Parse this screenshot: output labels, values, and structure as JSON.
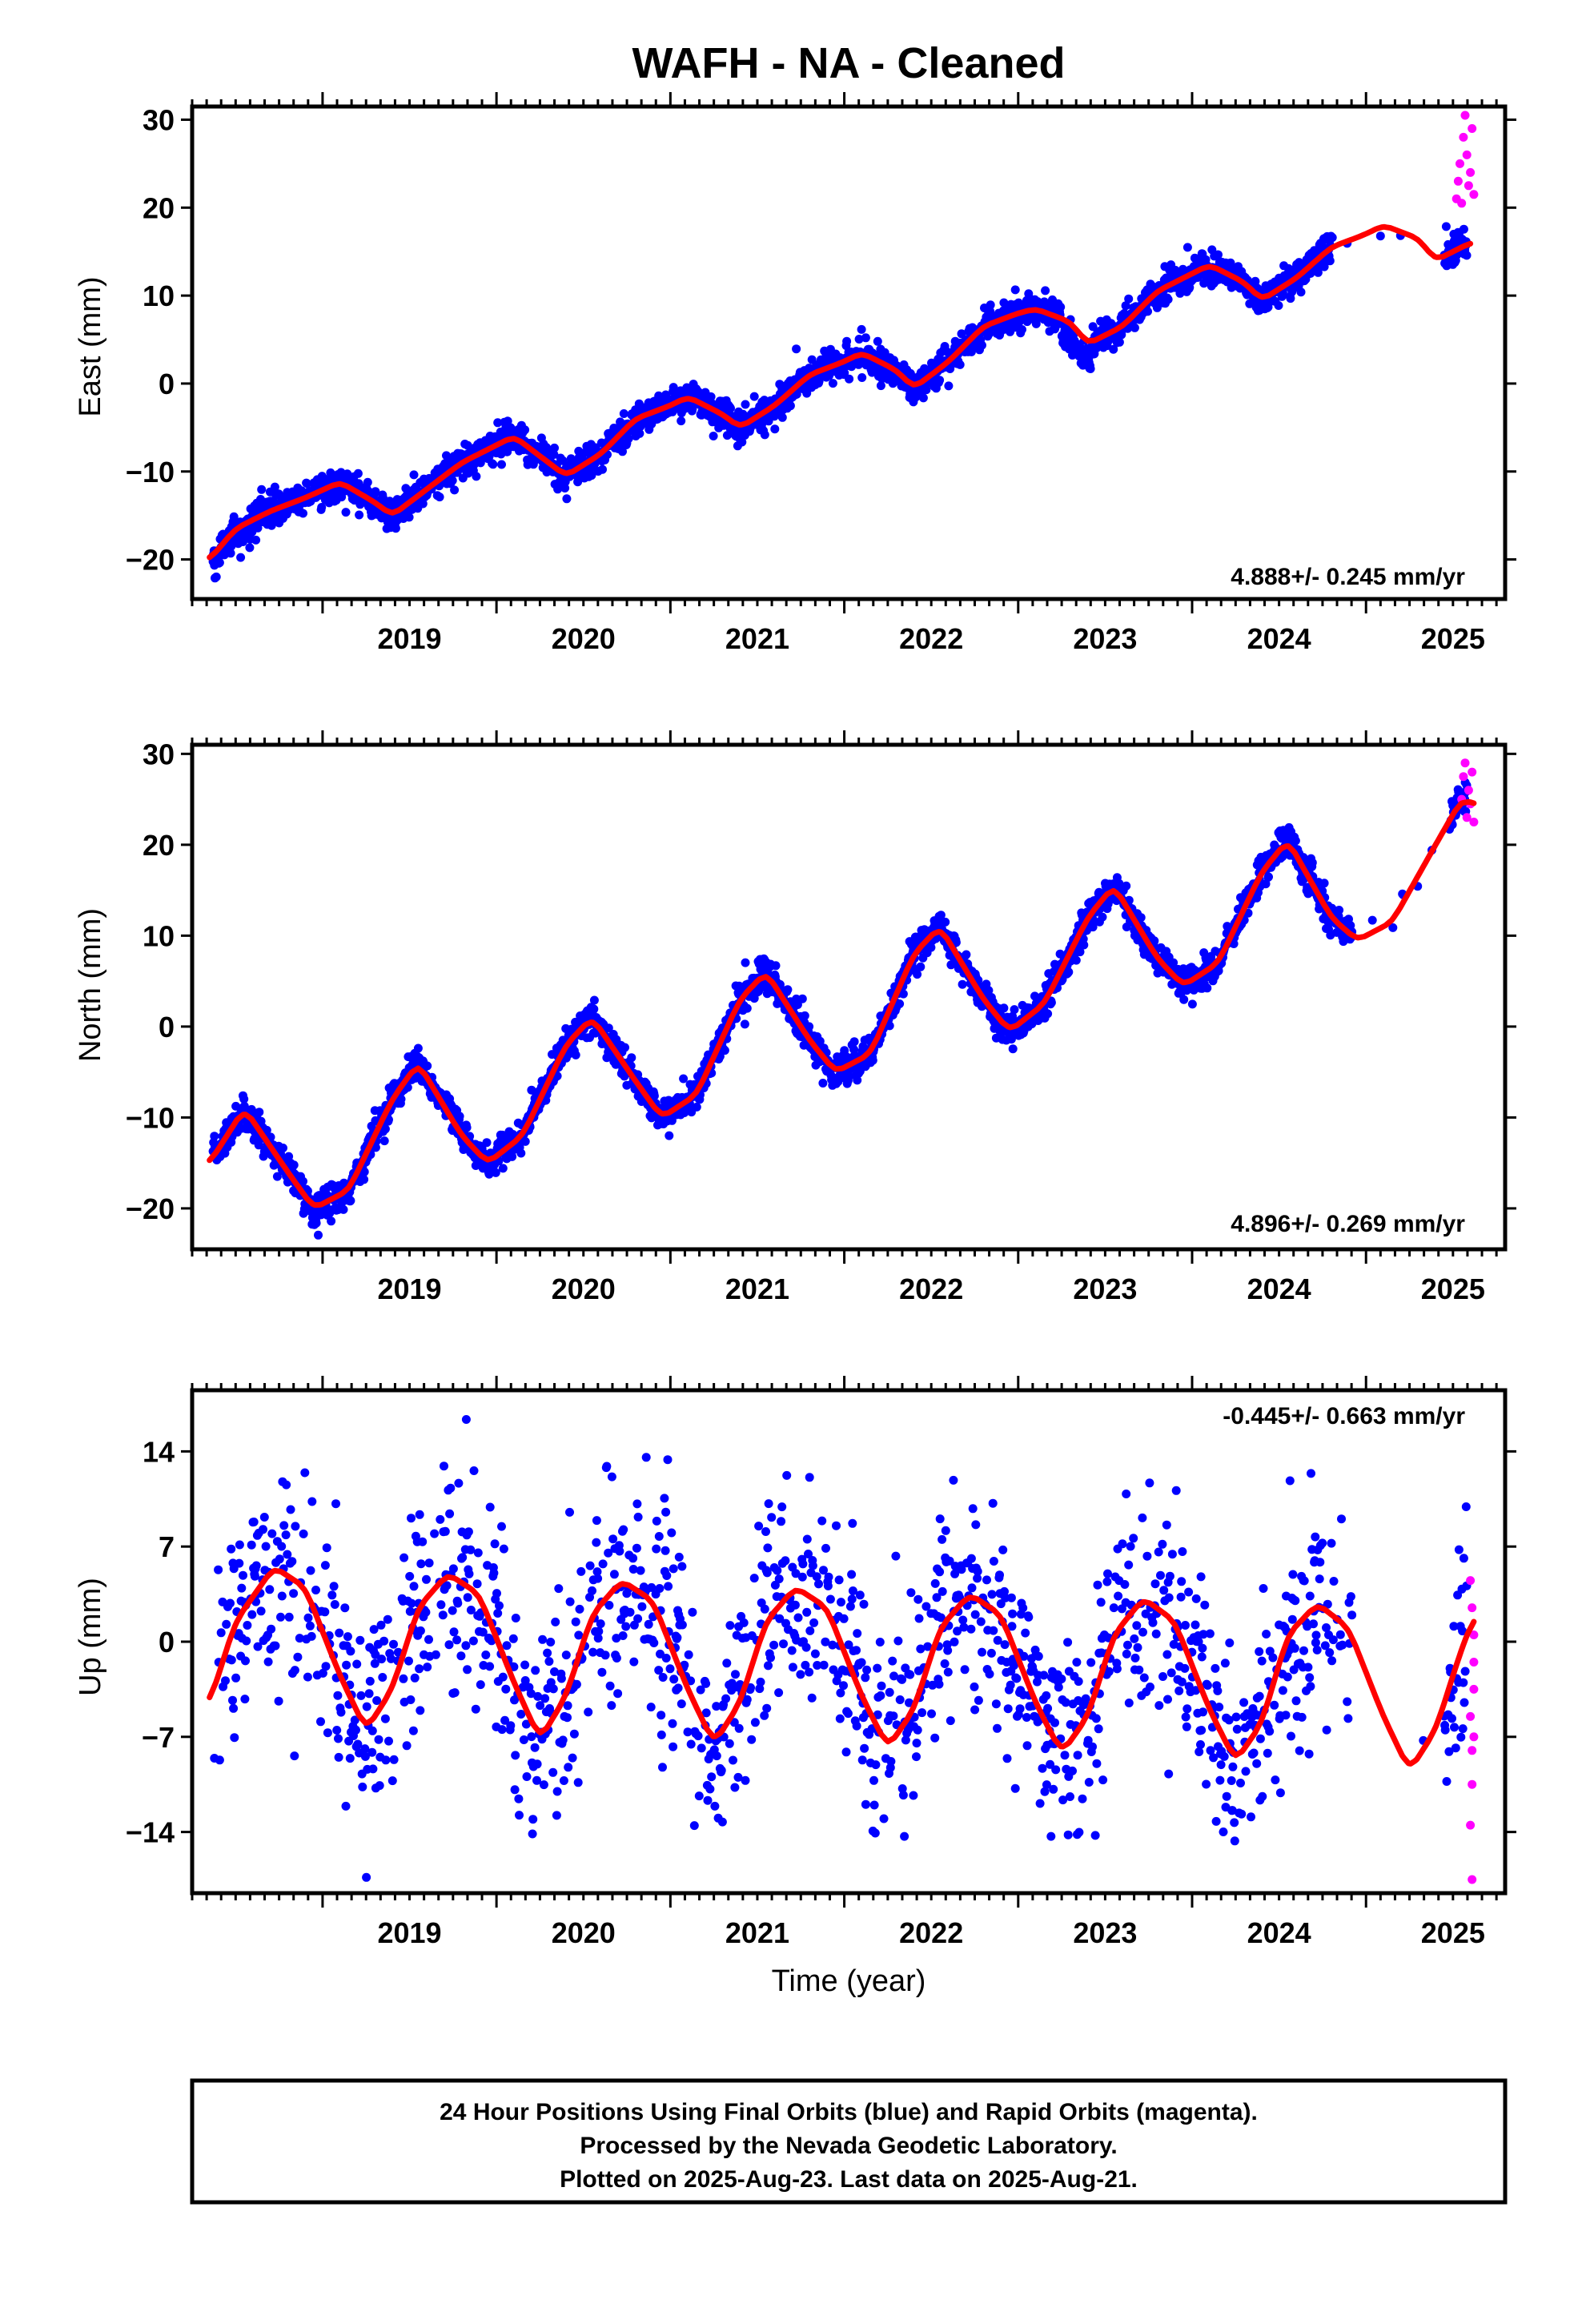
{
  "title": "WAFH  - NA - Cleaned",
  "colors": {
    "final": "#0000ff",
    "rapid": "#ff00ff",
    "model": "#ff0000",
    "frame": "#000000"
  },
  "chart_data": [
    {
      "type": "scatter",
      "component": "east",
      "ylabel": "East (mm)",
      "rate": "4.888+/- 0.245 mm/yr",
      "rate_position": "bottom-right",
      "xlim": [
        2018.25,
        2025.8
      ],
      "ylim": [
        -24.5,
        31.5
      ],
      "yticks": [
        -20,
        -10,
        0,
        10,
        20,
        30
      ],
      "yticklabels": [
        "−20",
        "−10",
        "0",
        "10",
        "20",
        "30"
      ],
      "xticks": [
        2019,
        2020,
        2021,
        2022,
        2023,
        2024,
        2025
      ],
      "xticklabels": [
        "2019",
        "2020",
        "2021",
        "2022",
        "2023",
        "2024",
        "2025"
      ],
      "grid": false,
      "series": [
        {
          "kind": "model-line",
          "x": [
            2018.35,
            2018.5,
            2018.7,
            2018.9,
            2019.1,
            2019.3,
            2019.4,
            2019.6,
            2019.8,
            2020.0,
            2020.1,
            2020.3,
            2020.4,
            2020.6,
            2020.8,
            2021.0,
            2021.1,
            2021.3,
            2021.4,
            2021.6,
            2021.8,
            2022.0,
            2022.1,
            2022.3,
            2022.4,
            2022.6,
            2022.8,
            2023.0,
            2023.1,
            2023.3,
            2023.4,
            2023.6,
            2023.8,
            2024.0,
            2024.1,
            2024.3,
            2024.4,
            2024.6,
            2024.8,
            2025.0,
            2025.1,
            2025.3,
            2025.4,
            2025.6
          ],
          "y": [
            -20.0,
            -16.5,
            -14.5,
            -13.0,
            -11.2,
            -13.5,
            -15.0,
            -12.0,
            -9.0,
            -7.0,
            -6.0,
            -9.0,
            -10.5,
            -8.0,
            -4.0,
            -2.5,
            -1.5,
            -3.5,
            -5.0,
            -2.5,
            1.0,
            2.5,
            3.5,
            1.5,
            -0.5,
            2.5,
            6.5,
            8.0,
            8.5,
            7.0,
            4.5,
            6.5,
            10.5,
            12.5,
            13.5,
            11.5,
            9.5,
            12.0,
            15.5,
            17.0,
            18.0,
            16.5,
            14.0,
            16.0
          ]
        },
        {
          "kind": "final-points",
          "x": [],
          "y": []
        },
        {
          "kind": "rapid-points",
          "x": [
            2025.52,
            2025.53,
            2025.54,
            2025.55,
            2025.56,
            2025.57,
            2025.58,
            2025.59,
            2025.6,
            2025.61,
            2025.62
          ],
          "y": [
            21.0,
            23.0,
            25.0,
            20.5,
            28.0,
            30.5,
            26.0,
            22.5,
            24.0,
            29.0,
            21.5
          ]
        }
      ]
    },
    {
      "type": "scatter",
      "component": "north",
      "ylabel": "North (mm)",
      "rate": "4.896+/- 0.269 mm/yr",
      "rate_position": "bottom-right",
      "xlim": [
        2018.25,
        2025.8
      ],
      "ylim": [
        -24.5,
        31.0
      ],
      "yticks": [
        -20,
        -10,
        0,
        10,
        20,
        30
      ],
      "yticklabels": [
        "−20",
        "−10",
        "0",
        "10",
        "20",
        "30"
      ],
      "xticks": [
        2019,
        2020,
        2021,
        2022,
        2023,
        2024,
        2025
      ],
      "xticklabels": [
        "2019",
        "2020",
        "2021",
        "2022",
        "2023",
        "2024",
        "2025"
      ],
      "grid": false,
      "series": [
        {
          "kind": "model-line",
          "x": [
            2018.35,
            2018.55,
            2018.8,
            2018.95,
            2019.15,
            2019.4,
            2019.55,
            2019.8,
            2019.95,
            2020.15,
            2020.4,
            2020.55,
            2020.8,
            2020.95,
            2021.15,
            2021.4,
            2021.55,
            2021.8,
            2021.95,
            2022.15,
            2022.4,
            2022.55,
            2022.8,
            2022.95,
            2023.15,
            2023.4,
            2023.55,
            2023.8,
            2023.95,
            2024.15,
            2024.4,
            2024.55,
            2024.8,
            2024.95,
            2025.15,
            2025.4,
            2025.55,
            2025.62
          ],
          "y": [
            -15.0,
            -9.0,
            -16.0,
            -20.0,
            -18.0,
            -8.0,
            -4.0,
            -12.0,
            -15.0,
            -12.0,
            -2.0,
            1.0,
            -6.0,
            -10.0,
            -7.5,
            3.0,
            6.0,
            -1.5,
            -5.0,
            -3.0,
            8.0,
            11.0,
            3.0,
            -0.5,
            2.5,
            12.0,
            15.5,
            7.5,
            4.5,
            7.0,
            17.0,
            20.5,
            12.0,
            9.5,
            11.5,
            20.0,
            25.0,
            24.5
          ]
        },
        {
          "kind": "final-points",
          "x": [],
          "y": []
        },
        {
          "kind": "rapid-points",
          "x": [
            2025.55,
            2025.56,
            2025.57,
            2025.58,
            2025.59,
            2025.6,
            2025.61,
            2025.62
          ],
          "y": [
            25.0,
            27.5,
            29.0,
            23.0,
            26.0,
            24.5,
            28.0,
            22.5
          ]
        }
      ]
    },
    {
      "type": "scatter",
      "component": "up",
      "ylabel": "Up (mm)",
      "xlabel": "Time (year)",
      "rate": "-0.445+/- 0.663 mm/yr",
      "rate_position": "top-right",
      "xlim": [
        2018.25,
        2025.8
      ],
      "ylim": [
        -18.5,
        18.5
      ],
      "yticks": [
        -14,
        -7,
        0,
        7,
        14
      ],
      "yticklabels": [
        "−14",
        "−7",
        "0",
        "7",
        "14"
      ],
      "xticks": [
        2019,
        2020,
        2021,
        2022,
        2023,
        2024,
        2025
      ],
      "xticklabels": [
        "2019",
        "2020",
        "2021",
        "2022",
        "2023",
        "2024",
        "2025"
      ],
      "grid": false,
      "series": [
        {
          "kind": "model-line",
          "x": [
            2018.35,
            2018.5,
            2018.72,
            2018.9,
            2019.1,
            2019.25,
            2019.4,
            2019.55,
            2019.72,
            2019.9,
            2020.1,
            2020.25,
            2020.4,
            2020.55,
            2020.72,
            2020.9,
            2021.1,
            2021.25,
            2021.4,
            2021.55,
            2021.72,
            2021.9,
            2022.1,
            2022.25,
            2022.4,
            2022.55,
            2022.72,
            2022.9,
            2023.1,
            2023.25,
            2023.4,
            2023.55,
            2023.72,
            2023.9,
            2024.1,
            2024.25,
            2024.4,
            2024.55,
            2024.72,
            2024.9,
            2025.1,
            2025.25,
            2025.4,
            2025.55,
            2025.62
          ],
          "y": [
            -4.5,
            1.5,
            5.5,
            4.0,
            -2.5,
            -6.5,
            -3.5,
            2.5,
            5.0,
            3.5,
            -3.0,
            -7.2,
            -4.0,
            2.0,
            4.5,
            3.0,
            -3.5,
            -7.5,
            -4.5,
            1.5,
            4.0,
            2.5,
            -4.0,
            -7.8,
            -5.0,
            1.0,
            3.5,
            2.0,
            -4.5,
            -8.2,
            -5.5,
            0.5,
            3.2,
            1.5,
            -5.0,
            -8.8,
            -6.0,
            0.5,
            2.8,
            1.0,
            -5.5,
            -9.5,
            -6.5,
            -0.5,
            1.8
          ]
        },
        {
          "kind": "final-points",
          "x": [],
          "y": []
        },
        {
          "kind": "rapid-points",
          "x": [
            2025.6,
            2025.6,
            2025.6,
            2025.61,
            2025.61,
            2025.61,
            2025.61,
            2025.62,
            2025.62,
            2025.62,
            2025.62
          ],
          "y": [
            4.5,
            -5.5,
            -13.5,
            -17.5,
            -10.5,
            -8.0,
            2.5,
            0.5,
            -1.5,
            -7.0,
            -3.5
          ]
        }
      ]
    }
  ],
  "footer": [
    "24 Hour Positions Using Final Orbits (blue) and Rapid Orbits (magenta).",
    "Processed by the Nevada Geodetic Laboratory.",
    "Plotted on 2025-Aug-23. Last data on 2025-Aug-21."
  ]
}
